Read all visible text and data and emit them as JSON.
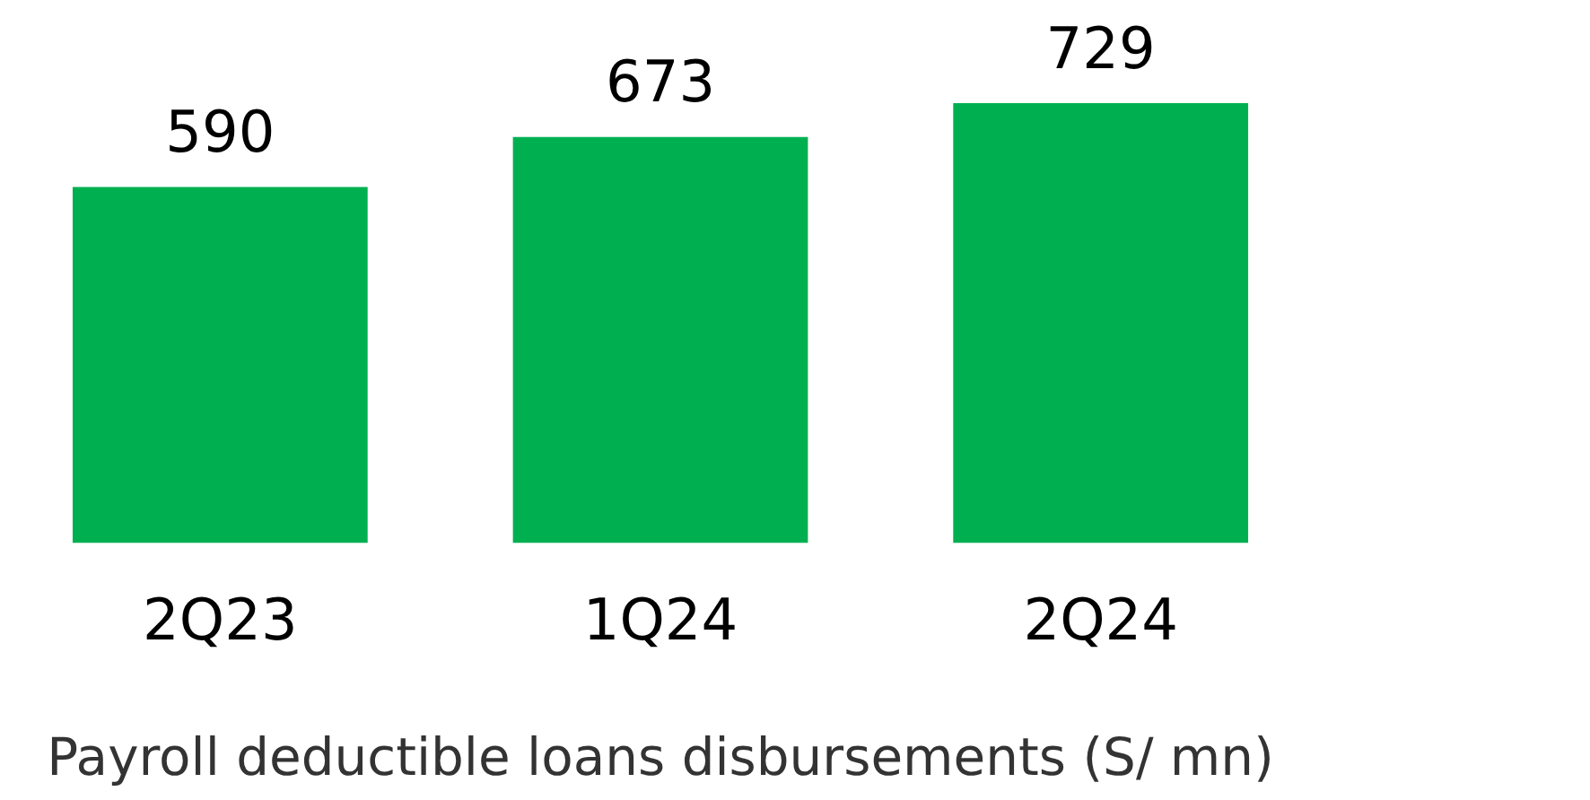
{
  "chart_data": {
    "type": "bar",
    "xlabel": "Payroll deductible loans disbursements (S/ mn)",
    "categories": [
      "2Q23",
      "1Q24",
      "2Q24"
    ],
    "values": [
      590,
      673,
      729
    ],
    "color": "#00b050",
    "data_labels": true,
    "grid": false,
    "legend": false,
    "tick_labels": "x"
  }
}
